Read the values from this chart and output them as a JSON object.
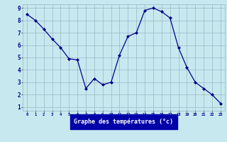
{
  "x": [
    0,
    1,
    2,
    3,
    4,
    5,
    6,
    7,
    8,
    9,
    10,
    11,
    12,
    13,
    14,
    15,
    16,
    17,
    18,
    19,
    20,
    21,
    22,
    23
  ],
  "y": [
    8.5,
    8.0,
    7.3,
    6.5,
    5.8,
    4.9,
    4.8,
    2.5,
    3.3,
    2.8,
    3.0,
    5.2,
    6.7,
    7.0,
    8.8,
    9.0,
    8.7,
    8.2,
    5.8,
    4.2,
    3.0,
    2.5,
    2.0,
    1.3
  ],
  "xlabel": "Graphe des températures (°c)",
  "ylim": [
    1,
    9
  ],
  "xlim": [
    0,
    23
  ],
  "yticks": [
    1,
    2,
    3,
    4,
    5,
    6,
    7,
    8,
    9
  ],
  "xticks": [
    0,
    1,
    2,
    3,
    4,
    5,
    6,
    7,
    8,
    9,
    10,
    11,
    12,
    13,
    14,
    15,
    16,
    17,
    18,
    19,
    20,
    21,
    22,
    23
  ],
  "line_color": "#00008b",
  "marker_color": "#00008b",
  "bg_color": "#c8e8f0",
  "grid_color": "#a0bec8",
  "xlabel_bg": "#0000aa",
  "xlabel_text_color": "#ffffff"
}
